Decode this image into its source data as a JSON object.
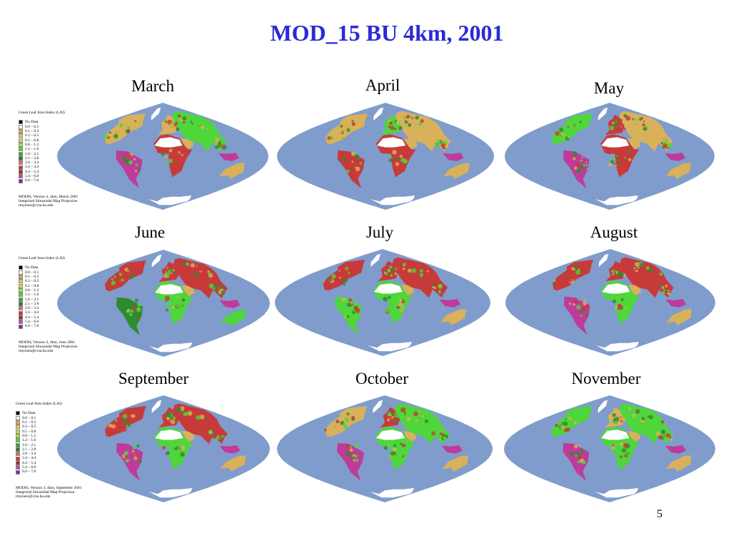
{
  "title": "MOD_15 BU 4km, 2001",
  "page_number": "5",
  "colors": {
    "title": "#2a2ad6",
    "ocean": "#7f9ccc",
    "snow": "#ffffff",
    "desert": "#d9b15a",
    "green_light": "#4ed63a",
    "green_dark": "#2e8b2e",
    "forest_red": "#c83a3a",
    "forest_magenta": "#c03a9a",
    "nodata": "#000000"
  },
  "panels": [
    {
      "month": "March"
    },
    {
      "month": "April"
    },
    {
      "month": "May"
    },
    {
      "month": "June"
    },
    {
      "month": "July"
    },
    {
      "month": "August"
    },
    {
      "month": "September"
    },
    {
      "month": "October"
    },
    {
      "month": "November"
    }
  ],
  "legend": {
    "title": "Green Leaf Area Index (LAI)",
    "items": [
      {
        "label": "No Data",
        "color": "#000000"
      },
      {
        "label": "0.0 – 0.1",
        "color": "#ffffff"
      },
      {
        "label": "0.1 – 0.3",
        "color": "#e8a33a"
      },
      {
        "label": "0.3 – 0.5",
        "color": "#f0c060"
      },
      {
        "label": "0.5 – 0.8",
        "color": "#d8d840"
      },
      {
        "label": "0.8 – 1.2",
        "color": "#9ce83a"
      },
      {
        "label": "1.2 – 1.6",
        "color": "#4ed63a"
      },
      {
        "label": "1.6 – 2.1",
        "color": "#2faa2f"
      },
      {
        "label": "2.1 – 2.8",
        "color": "#1f7a2f"
      },
      {
        "label": "2.8 – 3.4",
        "color": "#e06a6a"
      },
      {
        "label": "3.4 – 4.4",
        "color": "#d82a2a"
      },
      {
        "label": "4.4 – 5.4",
        "color": "#a02a2a"
      },
      {
        "label": "5.4 – 6.0",
        "color": "#d040c0"
      },
      {
        "label": "6.0 – 7.0",
        "color": "#7a2aa0"
      }
    ]
  },
  "legends": [
    {
      "footer": [
        "MODIS, Version 3, 4km, March 2001",
        "Integrized Sinusoidal Map Projection",
        "rmyneni@crsa.bu.edu"
      ]
    },
    {
      "footer": [
        "MODIS, Version 3, 4km, June 2001",
        "Integrized Sinusoidal Map Projection",
        "rmyneni@crsa.bu.edu"
      ]
    },
    {
      "footer": [
        "MODIS, Version 3, 4km, September 2001",
        "Integrized Sinusoidal Map Projection",
        "rmyneni@crsa.bu.edu"
      ]
    }
  ]
}
